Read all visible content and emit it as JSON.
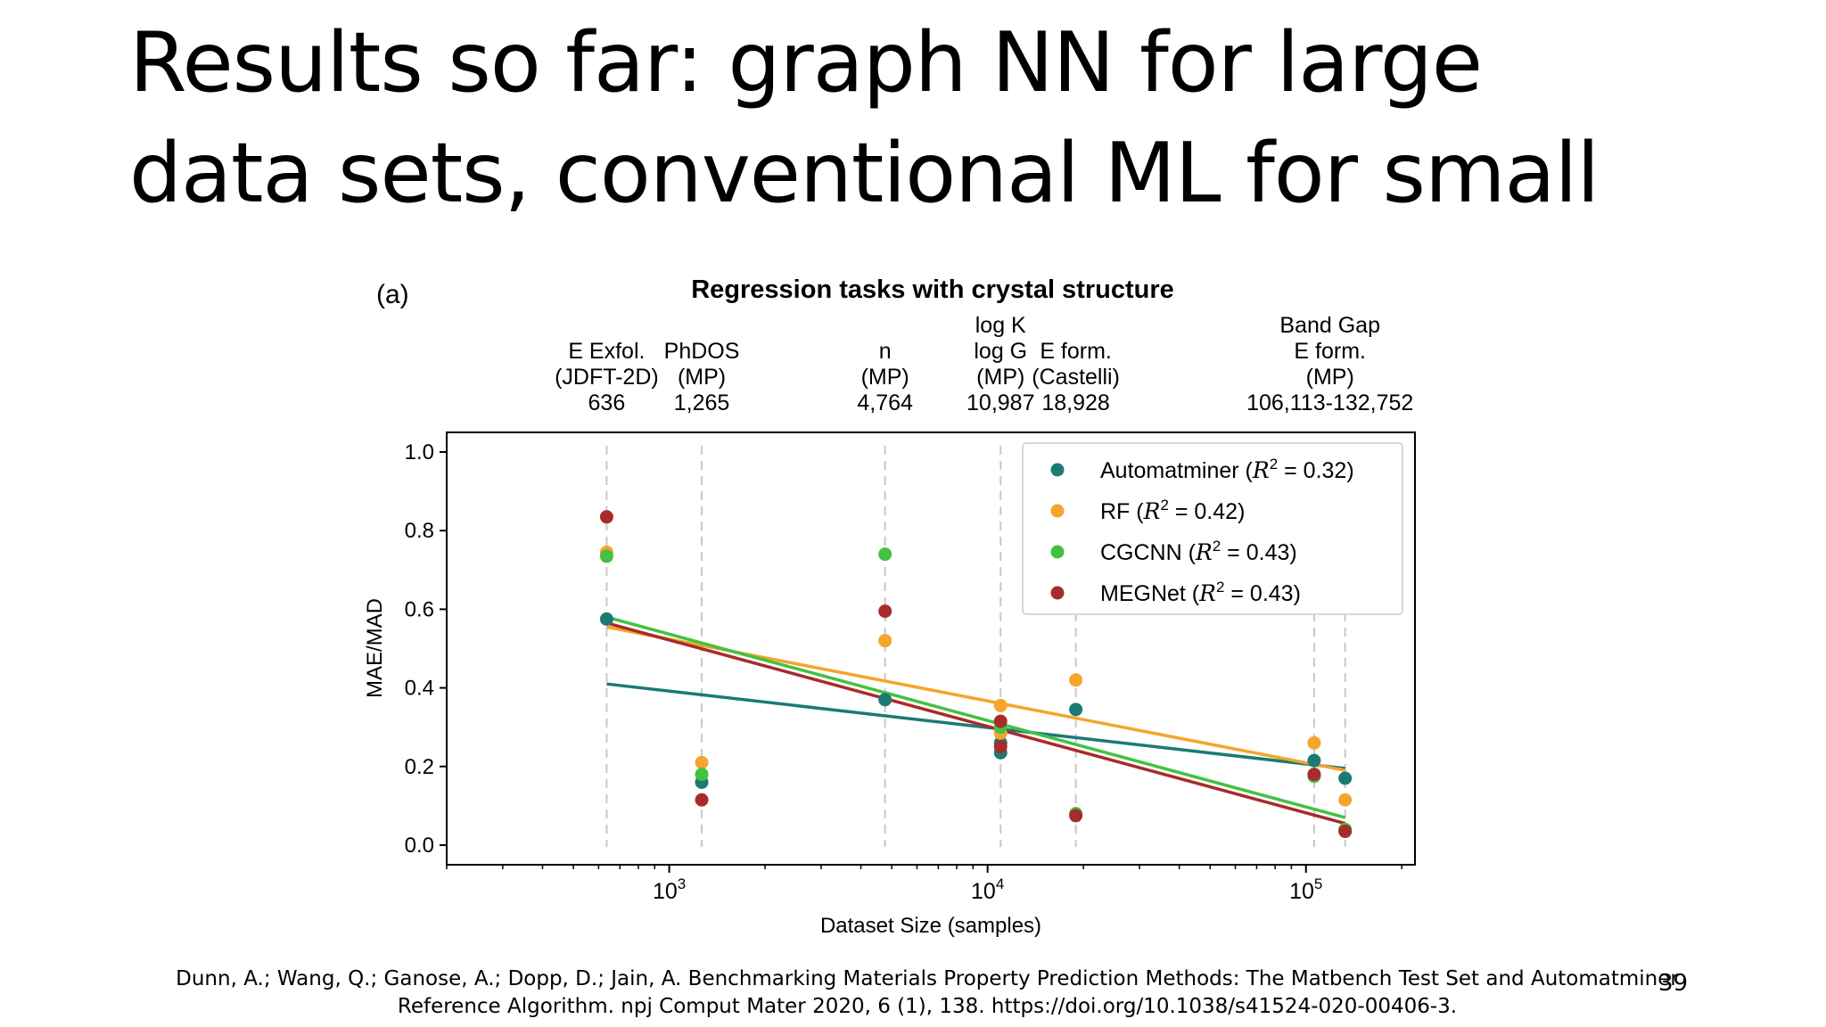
{
  "slide": {
    "title_lines": [
      "Results so far: graph NN for large",
      "data sets, conventional ML for small"
    ],
    "citation_lines": [
      "Dunn, A.; Wang, Q.; Ganose, A.; Dopp, D.; Jain, A. Benchmarking Materials Property Prediction Methods: The Matbench Test Set and Automatminer",
      "Reference Algorithm. npj Comput Mater 2020, 6 (1), 138. https://doi.org/10.1038/s41524-020-00406-3."
    ],
    "page_number": "39"
  },
  "chart_data": {
    "type": "scatter",
    "panel_label": "(a)",
    "title": "Regression tasks with crystal structure",
    "xlabel": "Dataset Size (samples)",
    "ylabel": "MAE/MAD",
    "xscale": "log",
    "xlim": [
      200,
      220000
    ],
    "ylim": [
      -0.05,
      1.05
    ],
    "yticks": [
      0.0,
      0.2,
      0.4,
      0.6,
      0.8,
      1.0
    ],
    "ytick_labels": [
      "0.0",
      "0.2",
      "0.4",
      "0.6",
      "0.8",
      "1.0"
    ],
    "xticks": [
      {
        "value": 1000,
        "base": "10",
        "exp": "3"
      },
      {
        "value": 10000,
        "base": "10",
        "exp": "4"
      },
      {
        "value": 100000,
        "base": "10",
        "exp": "5"
      }
    ],
    "dataset_positions": [
      636,
      1265,
      4764,
      10987,
      18928,
      106113,
      132752
    ],
    "top_labels": [
      {
        "x": 636,
        "lines": [
          "E Exfol.",
          "(JDFT-2D)",
          "636"
        ]
      },
      {
        "x": 1265,
        "lines": [
          "PhDOS",
          "(MP)",
          "1,265"
        ]
      },
      {
        "x": 4764,
        "lines": [
          "n",
          "(MP)",
          "4,764"
        ]
      },
      {
        "x": 10987,
        "lines": [
          "log K",
          "log G",
          "(MP)",
          "10,987"
        ]
      },
      {
        "x": 18928,
        "lines": [
          "E form.",
          "(Castelli)",
          "18,928"
        ]
      },
      {
        "x": 119000,
        "lines": [
          "Band Gap",
          "E form.",
          "(MP)",
          "106,113-132,752"
        ]
      }
    ],
    "legend_position": "top-right",
    "series": [
      {
        "name": "Automatminer",
        "r2": "0.32",
        "color": "#1b7b73",
        "points": [
          [
            636,
            0.575
          ],
          [
            1265,
            0.16
          ],
          [
            4764,
            0.37
          ],
          [
            10987,
            0.235
          ],
          [
            10987,
            0.26
          ],
          [
            18928,
            0.345
          ],
          [
            106113,
            0.215
          ],
          [
            132752,
            0.17
          ]
        ],
        "fit": [
          [
            636,
            0.41
          ],
          [
            132752,
            0.195
          ]
        ]
      },
      {
        "name": "RF",
        "r2": "0.42",
        "color": "#f4a52b",
        "points": [
          [
            636,
            0.745
          ],
          [
            1265,
            0.21
          ],
          [
            4764,
            0.52
          ],
          [
            10987,
            0.355
          ],
          [
            10987,
            0.285
          ],
          [
            18928,
            0.42
          ],
          [
            106113,
            0.26
          ],
          [
            132752,
            0.115
          ]
        ],
        "fit": [
          [
            636,
            0.555
          ],
          [
            132752,
            0.19
          ]
        ]
      },
      {
        "name": "CGCNN",
        "r2": "0.43",
        "color": "#42c240",
        "points": [
          [
            636,
            0.735
          ],
          [
            1265,
            0.18
          ],
          [
            4764,
            0.74
          ],
          [
            10987,
            0.3
          ],
          [
            18928,
            0.08
          ],
          [
            106113,
            0.175
          ],
          [
            132752,
            0.04
          ]
        ],
        "fit": [
          [
            636,
            0.58
          ],
          [
            132752,
            0.07
          ]
        ]
      },
      {
        "name": "MEGNet",
        "r2": "0.43",
        "color": "#a82b2b",
        "points": [
          [
            636,
            0.835
          ],
          [
            1265,
            0.115
          ],
          [
            4764,
            0.595
          ],
          [
            10987,
            0.315
          ],
          [
            10987,
            0.25
          ],
          [
            18928,
            0.075
          ],
          [
            106113,
            0.18
          ],
          [
            132752,
            0.035
          ]
        ],
        "fit": [
          [
            636,
            0.565
          ],
          [
            132752,
            0.055
          ]
        ]
      }
    ]
  }
}
